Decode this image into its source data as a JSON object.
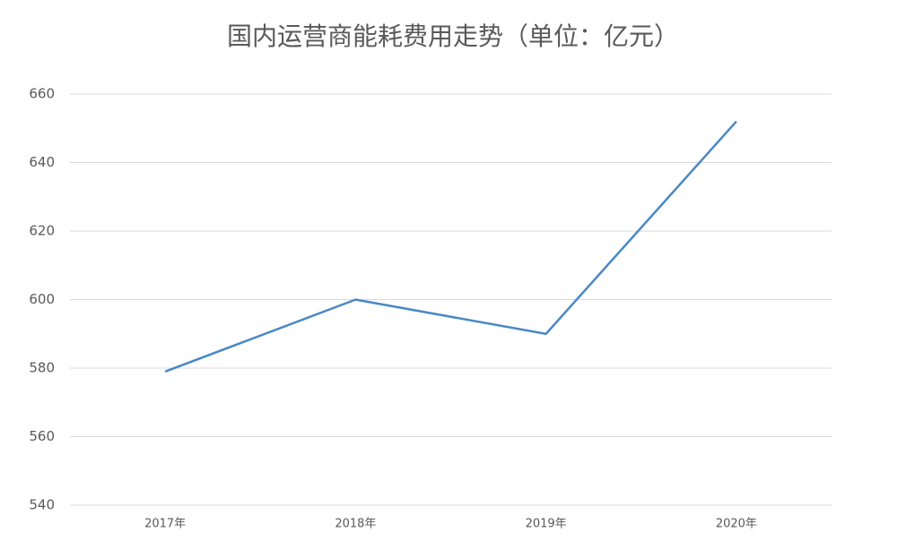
{
  "chart_data": {
    "type": "line",
    "title": "国内运营商能耗费用走势（单位：亿元）",
    "categories": [
      "2017年",
      "2018年",
      "2019年",
      "2020年"
    ],
    "values": [
      579,
      600,
      590,
      652
    ],
    "color": "#4a88c6",
    "ylim": [
      540,
      660
    ],
    "yticks": [
      540,
      560,
      580,
      600,
      620,
      640,
      660
    ],
    "grid": true
  }
}
